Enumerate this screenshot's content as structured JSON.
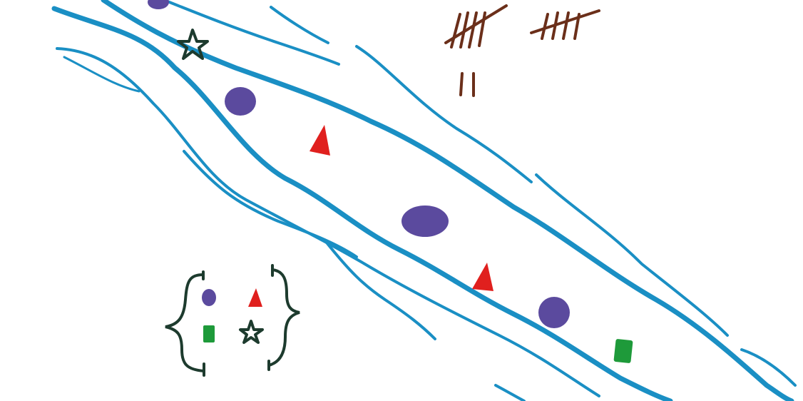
{
  "colors": {
    "background": "#ffffff",
    "river": "#1a8fc4",
    "circle": "#5b4a9e",
    "triangle": "#e0201e",
    "star": "#1d3b2e",
    "rectangle": "#1e9a3a",
    "tally": "#6b2f1a",
    "brace": "#1d3b2e"
  },
  "tally": {
    "groups_of_five": 2,
    "extra_marks": 2,
    "total": 12
  },
  "river_objects": [
    {
      "kind": "purple-circle",
      "count": 4
    },
    {
      "kind": "red-triangle",
      "count": 2
    },
    {
      "kind": "green-star",
      "count": 1
    },
    {
      "kind": "green-rectangle",
      "count": 1
    }
  ],
  "legend": {
    "bracket": "curly-braces",
    "items": [
      "purple-circle",
      "red-triangle",
      "green-rectangle",
      "green-star"
    ]
  }
}
